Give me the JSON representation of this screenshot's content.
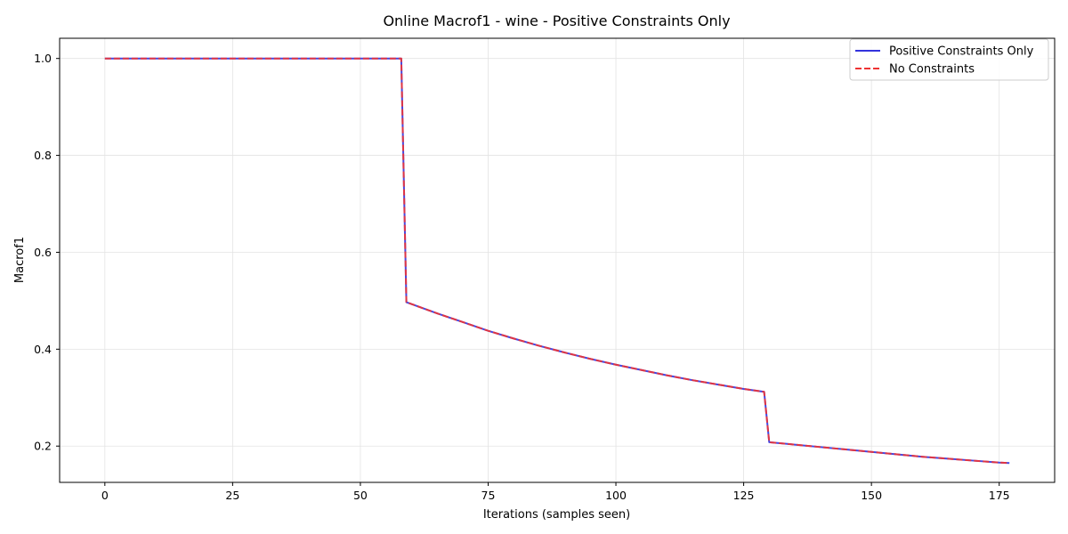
{
  "chart_data": {
    "type": "line",
    "title": "Online Macrof1 - wine - Positive Constraints Only",
    "xlabel": "Iterations (samples seen)",
    "ylabel": "Macrof1",
    "xlim": [
      -8.85,
      185.85
    ],
    "ylim": [
      0.1251,
      1.0417
    ],
    "xticks": [
      0,
      25,
      50,
      75,
      100,
      125,
      150,
      175
    ],
    "xtick_labels": [
      "0",
      "25",
      "50",
      "75",
      "100",
      "125",
      "150",
      "175"
    ],
    "yticks": [
      0.2,
      0.4,
      0.6,
      0.8,
      1.0
    ],
    "ytick_labels": [
      "0.2",
      "0.4",
      "0.6",
      "0.8",
      "1.0"
    ],
    "grid": true,
    "legend_position": "top-right",
    "series": [
      {
        "name": "Positive Constraints Only",
        "color": "#3333dd",
        "style": "solid",
        "x": [
          0,
          58,
          59,
          65,
          70,
          75,
          80,
          85,
          90,
          95,
          100,
          105,
          110,
          115,
          120,
          125,
          129,
          130,
          135,
          140,
          145,
          150,
          155,
          160,
          165,
          170,
          175,
          177
        ],
        "y": [
          1.0,
          1.0,
          0.497,
          0.474,
          0.456,
          0.438,
          0.422,
          0.407,
          0.393,
          0.38,
          0.368,
          0.357,
          0.346,
          0.336,
          0.327,
          0.318,
          0.312,
          0.208,
          0.203,
          0.198,
          0.193,
          0.188,
          0.183,
          0.178,
          0.174,
          0.17,
          0.166,
          0.165
        ]
      },
      {
        "name": "No Constraints",
        "color": "#ee3333",
        "style": "dashed",
        "x": [
          0,
          58,
          59,
          65,
          70,
          75,
          80,
          85,
          90,
          95,
          100,
          105,
          110,
          115,
          120,
          125,
          129,
          130,
          135,
          140,
          145,
          150,
          155,
          160,
          165,
          170,
          175,
          177
        ],
        "y": [
          1.0,
          1.0,
          0.497,
          0.474,
          0.456,
          0.438,
          0.422,
          0.407,
          0.393,
          0.38,
          0.368,
          0.357,
          0.346,
          0.336,
          0.327,
          0.318,
          0.312,
          0.208,
          0.203,
          0.198,
          0.193,
          0.188,
          0.183,
          0.178,
          0.174,
          0.17,
          0.166,
          0.165
        ]
      }
    ]
  }
}
